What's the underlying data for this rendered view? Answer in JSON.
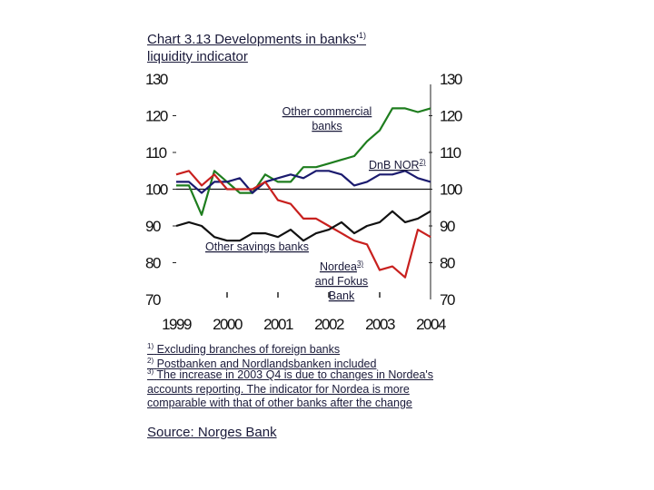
{
  "title": {
    "line1": "Chart 3.13 Developments in banks'",
    "sup": "1)",
    "line2": "liquidity indicator"
  },
  "footnotes": [
    {
      "sup": "1)",
      "text": "Excluding branches of foreign banks"
    },
    {
      "sup": "2)",
      "text": "Postbanken and Nordlandsbanken included"
    },
    {
      "sup": "3)",
      "text": "The increase in 2003 Q4 is due to changes in Nordea's accounts reporting. The indicator for Nordea is more comparable with that of other banks after the change"
    }
  ],
  "source": "Source: Norges Bank",
  "chart_data": {
    "type": "line",
    "x_tick_labels": [
      "1999",
      "2000",
      "2001",
      "2002",
      "2003",
      "2004"
    ],
    "x_range": [
      1999,
      2004
    ],
    "ylim": [
      70,
      130
    ],
    "y_ticks": [
      70,
      80,
      90,
      100,
      110,
      120,
      130
    ],
    "reference_line": 100,
    "annotations": [
      {
        "lines": [
          "Other commercial",
          "banks"
        ]
      },
      {
        "lines": [
          "DnB NOR"
        ],
        "sup": "2)"
      },
      {
        "lines": [
          "Other savings banks"
        ]
      },
      {
        "lines": [
          "Nordea",
          "and Fokus",
          "Bank"
        ],
        "sup": "3)"
      }
    ],
    "series": [
      {
        "label_ref": "Other commercial banks",
        "color": "#1e7d1e",
        "x": [
          1999.0,
          1999.25,
          1999.5,
          1999.75,
          2000.0,
          2000.25,
          2000.5,
          2000.75,
          2001.0,
          2001.25,
          2001.5,
          2001.75,
          2002.0,
          2002.25,
          2002.5,
          2002.75,
          2003.0,
          2003.25,
          2003.5,
          2003.75,
          2004.0
        ],
        "y": [
          101,
          101,
          93,
          105,
          102,
          99,
          99,
          104,
          102,
          102,
          106,
          106,
          107,
          108,
          109,
          113,
          116,
          122,
          122,
          121,
          122
        ]
      },
      {
        "label_ref": "DnB NOR",
        "color": "#1a1a6e",
        "x": [
          1999.0,
          1999.25,
          1999.5,
          1999.75,
          2000.0,
          2000.25,
          2000.5,
          2000.75,
          2001.0,
          2001.25,
          2001.5,
          2001.75,
          2002.0,
          2002.25,
          2002.5,
          2002.75,
          2003.0,
          2003.25,
          2003.5,
          2003.75,
          2004.0
        ],
        "y": [
          102,
          102,
          99,
          102,
          102,
          103,
          99,
          102,
          103,
          104,
          103,
          105,
          105,
          104,
          101,
          102,
          104,
          104,
          105,
          103,
          102
        ]
      },
      {
        "label_ref": "Nordea and Fokus Bank",
        "color": "#c8201e",
        "x": [
          1999.0,
          1999.25,
          1999.5,
          1999.75,
          2000.0,
          2000.25,
          2000.5,
          2000.75,
          2001.0,
          2001.25,
          2001.5,
          2001.75,
          2002.0,
          2002.25,
          2002.5,
          2002.75,
          2003.0,
          2003.25,
          2003.5,
          2003.75,
          2004.0
        ],
        "y": [
          104,
          105,
          101,
          104,
          100,
          100,
          100,
          102,
          97,
          96,
          92,
          92,
          90,
          88,
          86,
          85,
          78,
          79,
          76,
          89,
          87
        ]
      },
      {
        "label_ref": "Other savings banks",
        "color": "#111111",
        "x": [
          1999.0,
          1999.25,
          1999.5,
          1999.75,
          2000.0,
          2000.25,
          2000.5,
          2000.75,
          2001.0,
          2001.25,
          2001.5,
          2001.75,
          2002.0,
          2002.25,
          2002.5,
          2002.75,
          2003.0,
          2003.25,
          2003.5,
          2003.75,
          2004.0
        ],
        "y": [
          90,
          91,
          90,
          87,
          86,
          86,
          88,
          88,
          87,
          89,
          86,
          88,
          89,
          91,
          88,
          90,
          91,
          94,
          91,
          92,
          94
        ]
      }
    ]
  }
}
